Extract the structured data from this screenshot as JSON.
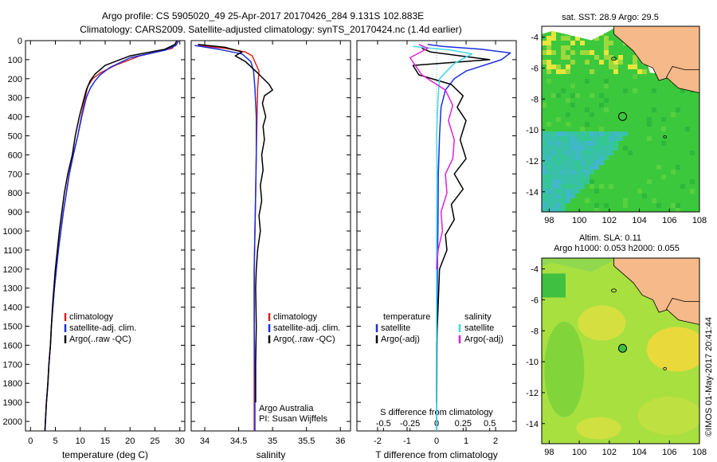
{
  "header": {
    "line1": "Argo profile: CS 5905020_49 25-Apr-2017 20170426_284 9.131S 102.883E",
    "line2": "Climatology: CARS2009. Satellite-adjusted climatology: synTS_20170424.nc (1.4d earlier)"
  },
  "colors": {
    "climatology": "#e0201a",
    "satellite": "#1a2ee0",
    "argo": "#000000",
    "satellite_salinity": "#40d8e8",
    "argo_salinity_diff": "#e020d8",
    "land": "#f5b98a"
  },
  "chart_data": [
    {
      "type": "line",
      "xlabel": "temperature (deg C)",
      "ylabel": "",
      "xlim": [
        -1,
        31
      ],
      "ylim": [
        2050,
        0
      ],
      "xticks": [
        0,
        5,
        10,
        15,
        20,
        25,
        30
      ],
      "yticks": [
        0,
        100,
        200,
        300,
        400,
        500,
        600,
        700,
        800,
        900,
        1000,
        1100,
        1200,
        1300,
        1400,
        1500,
        1600,
        1700,
        1800,
        1900,
        2000
      ],
      "legend": [
        "climatology",
        "satellite-adj. clim.",
        "Argo(..raw -QC)"
      ],
      "series": [
        {
          "name": "climatology",
          "color": "#e0201a",
          "points": [
            [
              29.5,
              0
            ],
            [
              29.0,
              20
            ],
            [
              28.5,
              40
            ],
            [
              22,
              80
            ],
            [
              17,
              130
            ],
            [
              14,
              170
            ],
            [
              12.5,
              200
            ],
            [
              11.5,
              240
            ],
            [
              11,
              300
            ],
            [
              10.2,
              400
            ],
            [
              9.5,
              500
            ],
            [
              8.6,
              600
            ],
            [
              7.8,
              700
            ],
            [
              7.2,
              800
            ],
            [
              6.6,
              900
            ],
            [
              6.1,
              1000
            ],
            [
              5.6,
              1100
            ],
            [
              5.2,
              1200
            ],
            [
              4.8,
              1300
            ],
            [
              4.5,
              1400
            ],
            [
              4.2,
              1500
            ],
            [
              4.0,
              1600
            ],
            [
              3.7,
              1700
            ],
            [
              3.5,
              1800
            ],
            [
              3.2,
              1900
            ],
            [
              3.0,
              2000
            ],
            [
              2.9,
              2050
            ]
          ]
        },
        {
          "name": "satellite-adj. clim.",
          "color": "#1a2ee0",
          "points": [
            [
              29.8,
              0
            ],
            [
              29.2,
              25
            ],
            [
              27,
              50
            ],
            [
              20,
              90
            ],
            [
              16,
              140
            ],
            [
              14,
              180
            ],
            [
              13,
              210
            ],
            [
              12,
              250
            ],
            [
              11.2,
              300
            ],
            [
              10.3,
              400
            ],
            [
              9.5,
              500
            ],
            [
              8.6,
              600
            ],
            [
              7.8,
              700
            ],
            [
              7.2,
              800
            ],
            [
              6.6,
              900
            ],
            [
              6.1,
              1000
            ],
            [
              5.6,
              1100
            ],
            [
              5.2,
              1200
            ],
            [
              4.8,
              1300
            ],
            [
              4.5,
              1400
            ],
            [
              4.2,
              1500
            ],
            [
              4.0,
              1600
            ],
            [
              3.7,
              1700
            ],
            [
              3.5,
              1800
            ],
            [
              3.2,
              1900
            ],
            [
              3.0,
              2000
            ],
            [
              2.9,
              2050
            ]
          ]
        },
        {
          "name": "Argo(..raw -QC)",
          "color": "#000000",
          "points": [
            [
              29.4,
              0
            ],
            [
              29.0,
              20
            ],
            [
              27,
              45
            ],
            [
              20,
              80
            ],
            [
              15,
              130
            ],
            [
              13,
              175
            ],
            [
              12,
              210
            ],
            [
              11.2,
              260
            ],
            [
              10.6,
              320
            ],
            [
              9.8,
              400
            ],
            [
              9.0,
              500
            ],
            [
              8.4,
              600
            ],
            [
              7.5,
              700
            ],
            [
              6.8,
              800
            ],
            [
              6.3,
              900
            ],
            [
              5.8,
              1000
            ],
            [
              5.4,
              1100
            ],
            [
              5.0,
              1200
            ],
            [
              4.7,
              1300
            ],
            [
              4.4,
              1400
            ],
            [
              4.2,
              1500
            ],
            [
              4.0,
              1600
            ],
            [
              3.7,
              1700
            ],
            [
              3.5,
              1800
            ],
            [
              3.2,
              1900
            ],
            [
              3.0,
              2000
            ],
            [
              2.9,
              2050
            ]
          ]
        }
      ],
      "annotations": []
    },
    {
      "type": "line",
      "xlabel": "salinity",
      "ylabel": "",
      "xlim": [
        33.8,
        36.15
      ],
      "ylim": [
        2050,
        0
      ],
      "xticks": [
        34,
        34.5,
        35,
        35.5,
        36
      ],
      "xticklabels": [
        "34",
        "34.5",
        "35",
        "35.5",
        "36"
      ],
      "legend": [
        "climatology",
        "satellite-adj. clim.",
        "Argo(..raw -QC)"
      ],
      "series": [
        {
          "name": "climatology",
          "color": "#e0201a",
          "points": [
            [
              33.9,
              25
            ],
            [
              34.3,
              40
            ],
            [
              34.6,
              60
            ],
            [
              34.7,
              80
            ],
            [
              34.75,
              120
            ],
            [
              34.8,
              160
            ],
            [
              34.78,
              250
            ],
            [
              34.77,
              400
            ],
            [
              34.76,
              600
            ],
            [
              34.75,
              800
            ],
            [
              34.74,
              1000
            ],
            [
              34.73,
              1200
            ],
            [
              34.73,
              1500
            ],
            [
              34.73,
              1800
            ],
            [
              34.73,
              2050
            ]
          ]
        },
        {
          "name": "satellite-adj. clim.",
          "color": "#1a2ee0",
          "points": [
            [
              33.85,
              25
            ],
            [
              34.2,
              45
            ],
            [
              34.55,
              70
            ],
            [
              34.68,
              110
            ],
            [
              34.72,
              160
            ],
            [
              34.74,
              250
            ],
            [
              34.76,
              400
            ],
            [
              34.76,
              600
            ],
            [
              34.75,
              800
            ],
            [
              34.74,
              1000
            ],
            [
              34.73,
              1200
            ],
            [
              34.73,
              1500
            ],
            [
              34.74,
              1800
            ],
            [
              34.74,
              2050
            ]
          ]
        },
        {
          "name": "Argo(..raw -QC)",
          "color": "#000000",
          "points": [
            [
              33.9,
              20
            ],
            [
              34.3,
              35
            ],
            [
              34.55,
              60
            ],
            [
              34.45,
              80
            ],
            [
              34.6,
              110
            ],
            [
              34.78,
              170
            ],
            [
              34.95,
              230
            ],
            [
              35.0,
              260
            ],
            [
              34.88,
              290
            ],
            [
              34.85,
              330
            ],
            [
              34.9,
              400
            ],
            [
              34.86,
              450
            ],
            [
              34.88,
              520
            ],
            [
              34.84,
              600
            ],
            [
              34.86,
              680
            ],
            [
              34.82,
              760
            ],
            [
              34.84,
              840
            ],
            [
              34.8,
              920
            ],
            [
              34.82,
              1000
            ],
            [
              34.78,
              1100
            ],
            [
              34.76,
              1200
            ],
            [
              34.75,
              1300
            ],
            [
              34.76,
              1500
            ],
            [
              34.75,
              1700
            ],
            [
              34.75,
              1900
            ]
          ]
        }
      ],
      "annotations": [
        "Argo Australia",
        "PI: Susan Wijffels"
      ]
    },
    {
      "type": "line",
      "xlabel": "T difference from climatology",
      "xlabel2": "S difference from climatology",
      "xlim": [
        -2.7,
        2.7
      ],
      "ylim": [
        2050,
        0
      ],
      "xticks": [
        -2,
        -1,
        0,
        1,
        2
      ],
      "xticks2": [
        -0.5,
        -0.25,
        0,
        0.25,
        0.5
      ],
      "xticks2labels": [
        "-0.5",
        "-0.25",
        "0",
        "0.25",
        "0.5"
      ],
      "legend_left_title": "temperature",
      "legend_right_title": "salinity",
      "legend_left": [
        "satellite",
        "Argo(-adj)"
      ],
      "legend_right": [
        "satellite",
        "Argo(-adj)"
      ],
      "series": [
        {
          "name": "temperature satellite",
          "color": "#1a2ee0",
          "points": [
            [
              -0.3,
              20
            ],
            [
              0.2,
              30
            ],
            [
              1.5,
              45
            ],
            [
              2.5,
              65
            ],
            [
              2.2,
              100
            ],
            [
              1.0,
              160
            ],
            [
              0.6,
              200
            ],
            [
              0.3,
              260
            ],
            [
              0.15,
              350
            ],
            [
              0.1,
              500
            ],
            [
              0.06,
              700
            ],
            [
              0.05,
              900
            ],
            [
              0.03,
              1200
            ],
            [
              0.02,
              1500
            ],
            [
              0.0,
              2050
            ]
          ]
        },
        {
          "name": "temperature Argo(-adj)",
          "color": "#000000",
          "points": [
            [
              -0.5,
              40
            ],
            [
              -0.2,
              60
            ],
            [
              0.8,
              80
            ],
            [
              1.8,
              100
            ],
            [
              -0.8,
              130
            ],
            [
              -0.6,
              180
            ],
            [
              0.5,
              230
            ],
            [
              0.9,
              290
            ],
            [
              0.7,
              350
            ],
            [
              1.0,
              420
            ],
            [
              0.8,
              520
            ],
            [
              1.0,
              620
            ],
            [
              0.6,
              700
            ],
            [
              0.9,
              780
            ],
            [
              0.5,
              860
            ],
            [
              0.6,
              940
            ],
            [
              0.3,
              1020
            ],
            [
              0.35,
              1100
            ],
            [
              0.1,
              1200
            ],
            [
              0.05,
              1400
            ],
            [
              0.0,
              1600
            ],
            [
              0.0,
              1900
            ]
          ]
        },
        {
          "name": "salinity satellite",
          "color": "#40d8e8",
          "points": [
            [
              -0.8,
              30
            ],
            [
              0.5,
              50
            ],
            [
              1.2,
              70
            ],
            [
              0.6,
              120
            ],
            [
              0.1,
              200
            ],
            [
              0.05,
              300
            ],
            [
              0.0,
              500
            ],
            [
              0.02,
              700
            ],
            [
              0.0,
              1000
            ],
            [
              0.0,
              1500
            ],
            [
              0.0,
              2050
            ]
          ]
        },
        {
          "name": "salinity Argo(-adj)",
          "color": "#e020d8",
          "points": [
            [
              -0.6,
              20
            ],
            [
              -0.3,
              40
            ],
            [
              -0.9,
              90
            ],
            [
              -0.5,
              180
            ],
            [
              0.3,
              260
            ],
            [
              0.55,
              340
            ],
            [
              0.4,
              420
            ],
            [
              0.6,
              520
            ],
            [
              0.55,
              620
            ],
            [
              0.3,
              700
            ],
            [
              0.35,
              800
            ],
            [
              0.15,
              900
            ],
            [
              0.2,
              1000
            ],
            [
              0.05,
              1100
            ],
            [
              0.0,
              1200
            ]
          ]
        }
      ],
      "annotations": []
    }
  ],
  "maps": [
    {
      "title": "sat. SST: 28.9 Argo: 29.5",
      "xticks": [
        98,
        100,
        102,
        104,
        106,
        108
      ],
      "yticks": [
        -4,
        -6,
        -8,
        -10,
        -12,
        -14
      ],
      "xticklabels": [
        "98",
        "100",
        "102",
        "104",
        "106",
        "108"
      ],
      "yticklabels": [
        "-4",
        "-6",
        "-8",
        "-10",
        "-12",
        "-14"
      ],
      "xlim": [
        97.5,
        108
      ],
      "ylim": [
        -15.3,
        -3.3
      ],
      "argo_location": [
        102.883,
        -9.131
      ]
    },
    {
      "title": "Altim. SLA: 0.11",
      "subtitle": "Argo h1000: 0.053 h2000: 0.055",
      "xticks": [
        98,
        100,
        102,
        104,
        106,
        108
      ],
      "yticks": [
        -4,
        -6,
        -8,
        -10,
        -12,
        -14
      ],
      "xticklabels": [
        "98",
        "100",
        "102",
        "104",
        "106",
        "108"
      ],
      "yticklabels": [
        "-4",
        "-6",
        "-8",
        "-10",
        "-12",
        "-14"
      ],
      "xlim": [
        97.5,
        108
      ],
      "ylim": [
        -15.3,
        -3.3
      ],
      "argo_location": [
        102.883,
        -9.131
      ]
    }
  ],
  "footer": {
    "stamp": "©IMOS 01-May-2017 20:41:44"
  }
}
